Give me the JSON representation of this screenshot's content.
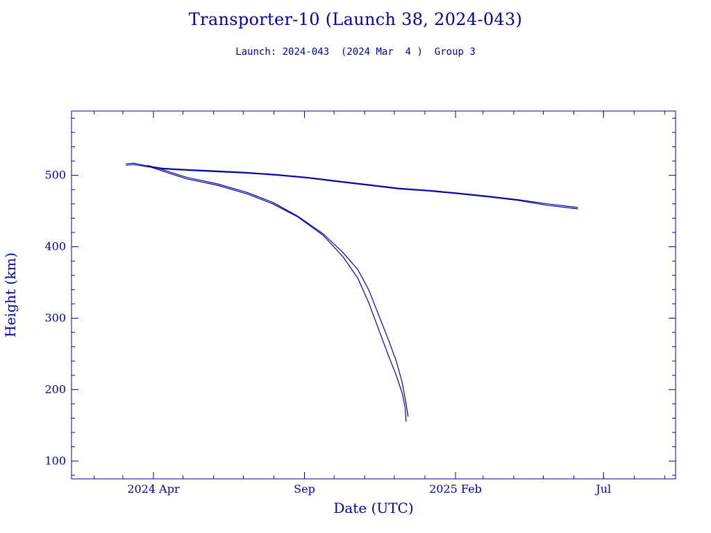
{
  "header": {
    "title": "Transporter-10 (Launch 38, 2024-043)",
    "subtitle": "Launch: 2024-043  (2024 Mar  4 )  Group 3"
  },
  "colors": {
    "ink": "#0000a0",
    "background": "#ffffff"
  },
  "chart_data": {
    "type": "line",
    "title": "Transporter-10 (Launch 38, 2024-043)",
    "subtitle": "Launch: 2024-043  (2024 Mar  4 )  Group 3",
    "xlabel": "Date (UTC)",
    "ylabel": "Height (km)",
    "xlim": [
      "2024-01-09",
      "2025-09-12"
    ],
    "ylim": [
      75,
      590
    ],
    "grid": false,
    "legend": "none",
    "x_ticks": [
      {
        "date": "2024-04-01",
        "label": "2024 Apr"
      },
      {
        "date": "2024-09-01",
        "label": "Sep"
      },
      {
        "date": "2025-02-01",
        "label": "2025 Feb"
      },
      {
        "date": "2025-07-01",
        "label": "Jul"
      }
    ],
    "y_ticks": [
      100,
      200,
      300,
      400,
      500
    ],
    "series": [
      {
        "x": [
          "2024-03-04",
          "2024-03-12",
          "2024-03-26",
          "2024-04-10",
          "2024-05-05",
          "2024-06-05",
          "2024-07-05",
          "2024-08-05",
          "2024-09-05",
          "2024-10-05",
          "2024-11-05",
          "2024-12-05",
          "2025-01-05",
          "2025-02-05",
          "2025-03-05",
          "2025-04-05",
          "2025-05-05",
          "2025-06-05"
        ],
        "y": [
          516,
          517,
          513,
          510,
          508,
          506,
          504,
          501,
          497,
          492,
          487,
          482,
          479,
          475,
          471,
          466,
          460,
          455
        ]
      },
      {
        "x": [
          "2024-03-04",
          "2024-03-12",
          "2024-03-26",
          "2024-04-10",
          "2024-05-05",
          "2024-06-05",
          "2024-07-05",
          "2024-08-05",
          "2024-09-05",
          "2024-10-05",
          "2024-11-05",
          "2024-12-05",
          "2025-01-05",
          "2025-02-05",
          "2025-03-05",
          "2025-04-05",
          "2025-05-05",
          "2025-06-05"
        ],
        "y": [
          514,
          515,
          512,
          509,
          507,
          505,
          503,
          500,
          496,
          491,
          486,
          481,
          478,
          474,
          470,
          465,
          458,
          453
        ]
      },
      {
        "x": [
          "2024-03-26",
          "2024-04-10",
          "2024-05-05",
          "2024-06-05",
          "2024-07-05",
          "2024-07-31",
          "2024-08-25",
          "2024-09-20",
          "2024-10-10",
          "2024-10-25",
          "2024-11-05",
          "2024-11-15",
          "2024-11-25",
          "2024-12-03",
          "2024-12-09",
          "2024-12-12",
          "2024-12-13"
        ],
        "y": [
          513,
          506,
          495,
          486,
          474,
          460,
          442,
          416,
          386,
          356,
          322,
          285,
          248,
          220,
          195,
          175,
          155
        ]
      },
      {
        "x": [
          "2024-03-26",
          "2024-04-10",
          "2024-05-05",
          "2024-06-05",
          "2024-07-05",
          "2024-07-31",
          "2024-08-25",
          "2024-09-20",
          "2024-10-10",
          "2024-10-25",
          "2024-11-05",
          "2024-11-15",
          "2024-11-25",
          "2024-12-03",
          "2024-12-09",
          "2024-12-13",
          "2024-12-15"
        ],
        "y": [
          514,
          508,
          497,
          488,
          476,
          462,
          443,
          418,
          392,
          368,
          340,
          305,
          270,
          240,
          210,
          180,
          162
        ]
      }
    ]
  }
}
